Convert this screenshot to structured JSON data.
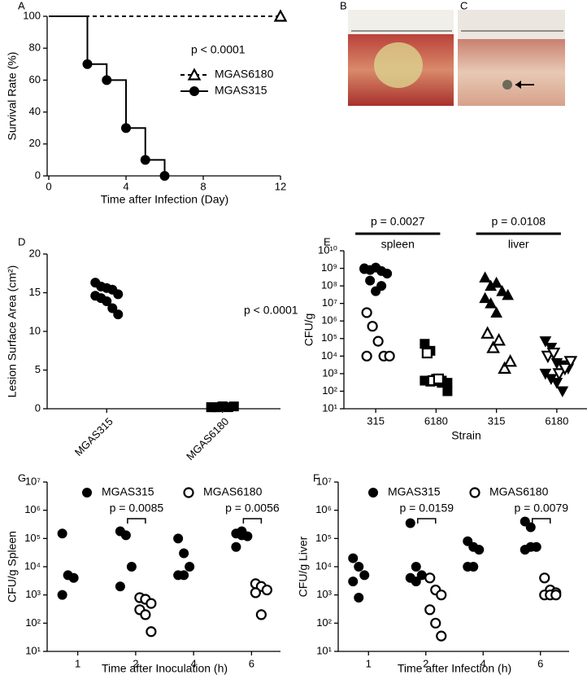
{
  "photos": [
    {
      "label": "B"
    },
    {
      "label": "C"
    }
  ],
  "chart_data": [
    {
      "type": "line",
      "panel": "A",
      "xlabel": "Time after Infection (Day)",
      "ylabel": "Survival Rate (%)",
      "annotation": "p < 0.0001",
      "xlim": [
        0,
        12
      ],
      "xticks": [
        0,
        4,
        8,
        12
      ],
      "ylim": [
        0,
        100
      ],
      "yticks": [
        0,
        20,
        40,
        60,
        80,
        100
      ],
      "step": true,
      "legend": "center",
      "series": [
        {
          "name": "MGAS6180",
          "color": "#000000",
          "marker": "triangle-open",
          "dashed": true,
          "x": [
            0,
            12
          ],
          "values": [
            100,
            100
          ]
        },
        {
          "name": "MGAS315",
          "color": "#000000",
          "marker": "circle",
          "dashed": false,
          "x": [
            0,
            2,
            3,
            4,
            5,
            6
          ],
          "values": [
            100,
            70,
            60,
            30,
            10,
            0
          ]
        }
      ]
    },
    {
      "type": "strip",
      "panel": "D",
      "ylabel": "Lesion Surface Area (cm²)",
      "annotation": "p < 0.0001",
      "categories": [
        "MGAS315",
        "MGAS6180"
      ],
      "rotate_categories": true,
      "markers": [
        "circle",
        "square"
      ],
      "ylim": [
        0,
        20
      ],
      "yticks": [
        0,
        5,
        10,
        15,
        20
      ],
      "series": [
        {
          "fill": "#000000",
          "values": [
            [
              16.3,
              15.8,
              15.6,
              15.4,
              14.8,
              14.6,
              14.3,
              13.9,
              13.0,
              12.2
            ],
            [
              0.2,
              0.2,
              0.3,
              0.2,
              0.3,
              0.2,
              0.2,
              0.3
            ]
          ]
        }
      ]
    },
    {
      "type": "strip",
      "panel": "E",
      "ylabel": "CFU/g",
      "xlabel": "Strain",
      "log": true,
      "categories": [
        "315",
        "6180",
        "315",
        "6180"
      ],
      "markers": [
        "circle",
        "square",
        "triangle-up",
        "triangle-down"
      ],
      "ylim": [
        10,
        10000000000.0
      ],
      "yticks": [
        {
          "value": 10,
          "label": "10¹"
        },
        {
          "value": 100,
          "label": "10²"
        },
        {
          "value": 1000,
          "label": "10³"
        },
        {
          "value": 10000,
          "label": "10⁴"
        },
        {
          "value": 100000,
          "label": "10⁵"
        },
        {
          "value": 1000000,
          "label": "10⁶"
        },
        {
          "value": 10000000,
          "label": "10⁷"
        },
        {
          "value": 100000000,
          "label": "10⁸"
        },
        {
          "value": 1000000000,
          "label": "10⁹"
        },
        {
          "value": 10000000000,
          "label": "10¹⁰"
        }
      ],
      "comparisons": [
        {
          "label": "p = 0.0027",
          "tissue": "spleen"
        },
        {
          "label": "p = 0.0108",
          "tissue": "liver"
        }
      ],
      "series": [
        {
          "fill": "#000000",
          "values": [
            [
              1000000000.0,
              800000000.0,
              1100000000.0,
              700000000.0,
              500000000.0,
              900000000.0,
              200000000.0,
              50000000.0,
              100000000.0
            ],
            [
              50000.0,
              20000.0,
              500,
              400,
              300,
              400,
              350,
              500,
              300,
              100
            ],
            [
              300000000.0,
              100000000.0,
              150000000.0,
              50000000.0,
              30000000.0,
              20000000.0,
              10000000.0,
              3000000.0
            ],
            [
              70000.0,
              30000.0,
              4000.0,
              3000.0,
              2000.0,
              1000.0,
              500,
              300,
              100
            ]
          ]
        },
        {
          "fill": "#ffffff",
          "values": [
            [
              3000000.0,
              500000.0,
              70000.0,
              10000.0,
              10000.0,
              10000.0
            ],
            [
              15000.0,
              400,
              500
            ],
            [
              200000.0,
              30000.0,
              80000.0,
              2000.0,
              5000.0
            ],
            [
              10000.0,
              15000.0,
              1000.0,
              2000.0,
              5000.0
            ]
          ]
        }
      ]
    },
    {
      "type": "strip",
      "panel": "G",
      "ylabel": "CFU/g Spleen",
      "xlabel": "Time after Inoculation (h)",
      "log": true,
      "dodge": true,
      "categories": [
        "1",
        "2",
        "4",
        "6"
      ],
      "ylim": [
        10,
        10000000.0
      ],
      "yticks": [
        {
          "value": 10,
          "label": "10¹"
        },
        {
          "value": 100,
          "label": "10²"
        },
        {
          "value": 1000,
          "label": "10³"
        },
        {
          "value": 10000,
          "label": "10⁴"
        },
        {
          "value": 100000,
          "label": "10⁵"
        },
        {
          "value": 1000000,
          "label": "10⁶"
        },
        {
          "value": 10000000,
          "label": "10⁷"
        }
      ],
      "comparisons": [
        {
          "label": "p = 0.0085"
        },
        {
          "label": "p = 0.0056"
        }
      ],
      "series": [
        {
          "name": "MGAS315",
          "fill": "#000000",
          "marker": "circle",
          "values": [
            [
              150000.0,
              5000.0,
              4000.0,
              1000.0
            ],
            [
              180000.0,
              130000.0,
              10000.0,
              2000.0
            ],
            [
              100000.0,
              30000.0,
              10000.0,
              5000.0,
              5000.0
            ],
            [
              150000.0,
              130000.0,
              120000.0,
              50000.0,
              180000.0
            ]
          ]
        },
        {
          "name": "MGAS6180",
          "fill": "#ffffff",
          "marker": "circle",
          "values": [
            [],
            [
              800,
              700,
              500,
              300,
              200,
              50
            ],
            [],
            [
              2500,
              2000,
              1500,
              1200,
              200
            ]
          ]
        }
      ]
    },
    {
      "type": "strip",
      "panel": "F",
      "ylabel": "CFU/g Liver",
      "xlabel": "Time after Infection (h)",
      "log": true,
      "dodge": true,
      "categories": [
        "1",
        "2",
        "4",
        "6"
      ],
      "ylim": [
        10,
        10000000.0
      ],
      "yticks": [
        {
          "value": 10,
          "label": "10¹"
        },
        {
          "value": 100,
          "label": "10²"
        },
        {
          "value": 1000,
          "label": "10³"
        },
        {
          "value": 10000,
          "label": "10⁴"
        },
        {
          "value": 100000,
          "label": "10⁵"
        },
        {
          "value": 1000000,
          "label": "10⁶"
        },
        {
          "value": 10000000,
          "label": "10⁷"
        }
      ],
      "comparisons": [
        {
          "label": "p = 0.0159"
        },
        {
          "label": "p = 0.0079"
        }
      ],
      "series": [
        {
          "name": "MGAS315",
          "fill": "#000000",
          "marker": "circle",
          "values": [
            [
              20000.0,
              10000.0,
              5000.0,
              3000.0,
              800
            ],
            [
              350000.0,
              10000.0,
              5000.0,
              4000.0,
              3000.0
            ],
            [
              80000.0,
              50000.0,
              40000.0,
              10000.0,
              10000.0
            ],
            [
              400000.0,
              250000.0,
              50000.0,
              40000.0,
              50000.0
            ]
          ]
        },
        {
          "name": "MGAS6180",
          "fill": "#ffffff",
          "marker": "circle",
          "values": [
            [],
            [
              4000,
              1500,
              1000,
              300,
              100,
              35
            ],
            [],
            [
              4000,
              1500,
              1200,
              1000,
              1000,
              1000
            ]
          ]
        }
      ]
    }
  ]
}
